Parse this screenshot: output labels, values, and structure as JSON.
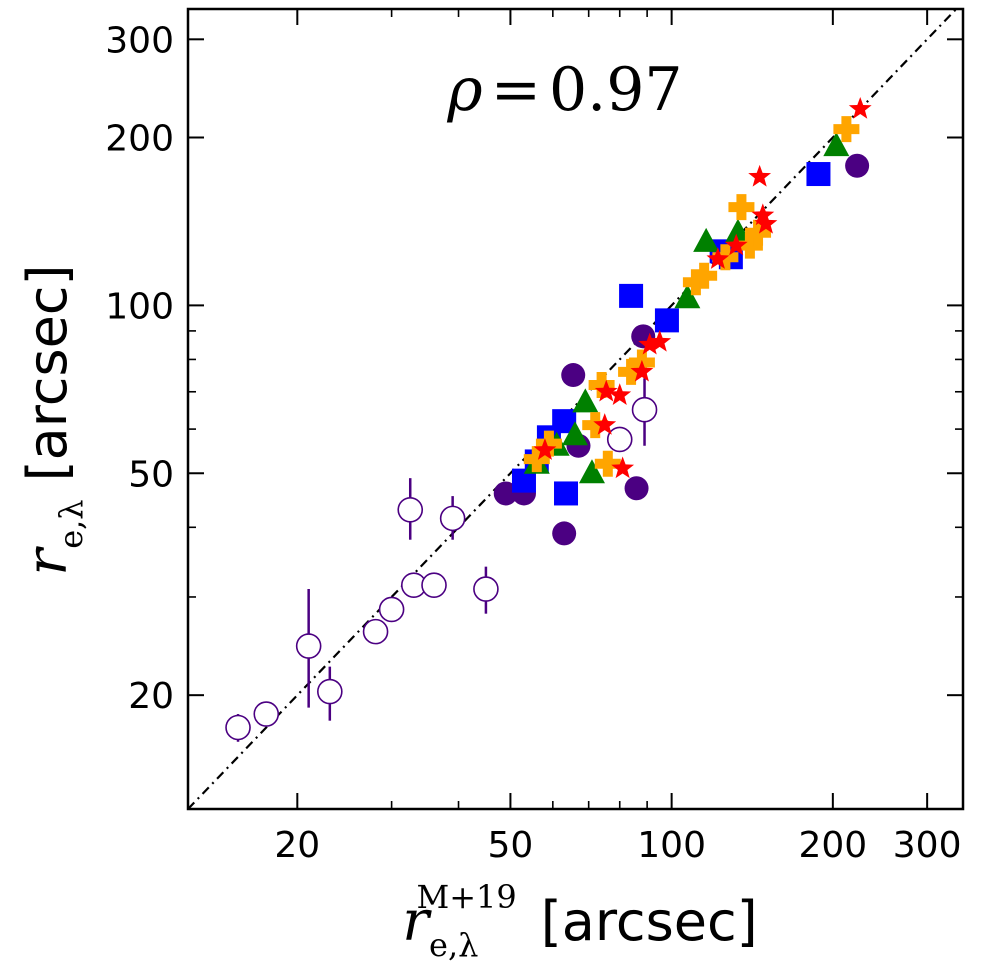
{
  "chart_data": {
    "type": "scatter",
    "title": "",
    "annotation": {
      "symbol": "ρ",
      "equals": "=",
      "value": "0.97"
    },
    "xlabel": {
      "var": "r",
      "subscript": "e,λ",
      "superscript": "M+19",
      "unit": "[arcsec]"
    },
    "ylabel": {
      "var": "r",
      "subscript": "e,λ",
      "unit": "[arcsec]"
    },
    "xscale": "log",
    "yscale": "log",
    "xlim": [
      12.5,
      350
    ],
    "ylim": [
      12.5,
      340
    ],
    "xticks": [
      20,
      50,
      100,
      200,
      300
    ],
    "xtick_labels": [
      "20",
      "50",
      "100",
      "200",
      "300"
    ],
    "yticks": [
      20,
      50,
      100,
      200,
      300
    ],
    "ytick_labels": [
      "20",
      "50",
      "100",
      "200",
      "300"
    ],
    "minor_ticks": [
      30,
      40,
      60,
      70,
      80,
      90
    ],
    "reference_line": {
      "style": "dash-dot",
      "relation": "y = x"
    },
    "colors": {
      "open_circle": "#4b0082",
      "filled_circle": "#4b0082",
      "square": "#0000ff",
      "triangle": "#008000",
      "plus": "#ffa500",
      "star": "#ff0000"
    },
    "series": [
      {
        "name": "open-circles",
        "marker": "open-circle",
        "points": [
          {
            "x": 15.5,
            "y": 17.5,
            "err": [
              16.5,
              18.5
            ]
          },
          {
            "x": 17.5,
            "y": 18.5,
            "err": null
          },
          {
            "x": 21,
            "y": 24.5,
            "err": [
              19,
              31
            ]
          },
          {
            "x": 23,
            "y": 20.3,
            "err": [
              18,
              22.5
            ]
          },
          {
            "x": 28,
            "y": 26,
            "err": null
          },
          {
            "x": 30,
            "y": 28.5,
            "err": null
          },
          {
            "x": 32.5,
            "y": 43,
            "err": [
              38,
              49
            ]
          },
          {
            "x": 33,
            "y": 31.5,
            "err": null
          },
          {
            "x": 36,
            "y": 31.5,
            "err": null
          },
          {
            "x": 39,
            "y": 41.5,
            "err": [
              38,
              45.5
            ]
          },
          {
            "x": 45,
            "y": 31,
            "err": [
              28,
              34
            ]
          },
          {
            "x": 80,
            "y": 57.5,
            "err": null
          },
          {
            "x": 89,
            "y": 65,
            "err": [
              56,
              74
            ]
          }
        ]
      },
      {
        "name": "filled-circles",
        "marker": "filled-circle",
        "points": [
          {
            "x": 49,
            "y": 46
          },
          {
            "x": 53,
            "y": 46
          },
          {
            "x": 63,
            "y": 39
          },
          {
            "x": 65.5,
            "y": 75
          },
          {
            "x": 67,
            "y": 56
          },
          {
            "x": 86,
            "y": 47
          },
          {
            "x": 88.5,
            "y": 88
          },
          {
            "x": 222,
            "y": 178
          }
        ]
      },
      {
        "name": "squares",
        "marker": "square",
        "points": [
          {
            "x": 53,
            "y": 48.5
          },
          {
            "x": 56,
            "y": 52.5
          },
          {
            "x": 59,
            "y": 58
          },
          {
            "x": 63,
            "y": 62
          },
          {
            "x": 63.5,
            "y": 46
          },
          {
            "x": 84,
            "y": 104
          },
          {
            "x": 98,
            "y": 94
          },
          {
            "x": 124,
            "y": 125
          },
          {
            "x": 129,
            "y": 122
          },
          {
            "x": 188,
            "y": 172
          }
        ]
      },
      {
        "name": "triangles",
        "marker": "triangle",
        "points": [
          {
            "x": 56,
            "y": 52
          },
          {
            "x": 61,
            "y": 56
          },
          {
            "x": 66,
            "y": 58.5
          },
          {
            "x": 69,
            "y": 67
          },
          {
            "x": 71,
            "y": 50
          },
          {
            "x": 107,
            "y": 103
          },
          {
            "x": 116,
            "y": 130
          },
          {
            "x": 133,
            "y": 135
          },
          {
            "x": 203,
            "y": 193
          }
        ]
      },
      {
        "name": "plus",
        "marker": "plus",
        "points": [
          {
            "x": 56,
            "y": 53
          },
          {
            "x": 59,
            "y": 56.5
          },
          {
            "x": 72,
            "y": 61
          },
          {
            "x": 74,
            "y": 72
          },
          {
            "x": 76,
            "y": 52
          },
          {
            "x": 84,
            "y": 76
          },
          {
            "x": 88,
            "y": 79
          },
          {
            "x": 111,
            "y": 110
          },
          {
            "x": 115,
            "y": 113
          },
          {
            "x": 126,
            "y": 122
          },
          {
            "x": 135,
            "y": 150
          },
          {
            "x": 140,
            "y": 128
          },
          {
            "x": 145,
            "y": 135
          },
          {
            "x": 212,
            "y": 207
          }
        ]
      },
      {
        "name": "stars",
        "marker": "star",
        "points": [
          {
            "x": 58,
            "y": 55
          },
          {
            "x": 75,
            "y": 61
          },
          {
            "x": 75.5,
            "y": 70
          },
          {
            "x": 80,
            "y": 69
          },
          {
            "x": 81,
            "y": 51
          },
          {
            "x": 88,
            "y": 76
          },
          {
            "x": 91,
            "y": 85
          },
          {
            "x": 95,
            "y": 86
          },
          {
            "x": 122,
            "y": 121
          },
          {
            "x": 132,
            "y": 128
          },
          {
            "x": 146,
            "y": 170
          },
          {
            "x": 148,
            "y": 145
          },
          {
            "x": 150,
            "y": 140
          },
          {
            "x": 225,
            "y": 225
          }
        ]
      }
    ]
  }
}
